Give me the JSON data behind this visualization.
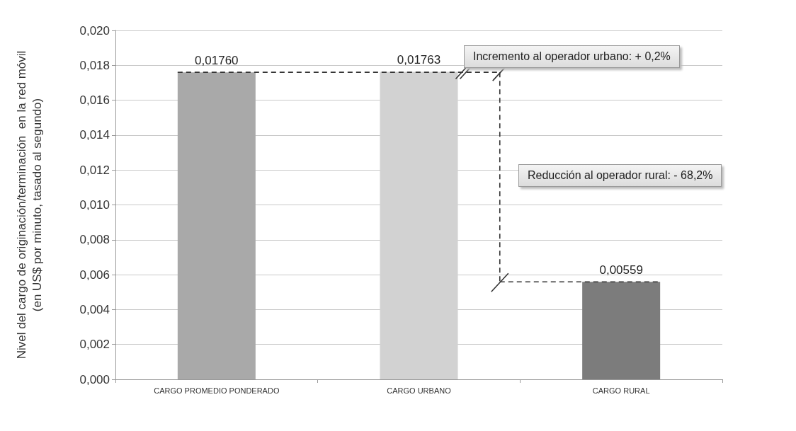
{
  "chart_data": {
    "type": "bar",
    "ylabel": "Nivel del cargo de originación/terminación  en la red móvil\n(en US$ por minuto, tasado al segundo)",
    "categories": [
      "CARGO PROMEDIO PONDERADO",
      "CARGO URBANO",
      "CARGO RURAL"
    ],
    "values": [
      0.0176,
      0.01763,
      0.00559
    ],
    "colors": [
      "#a9a9a9",
      "#d2d2d2",
      "#7c7c7c"
    ],
    "value_labels": [
      "0,01760",
      "0,01763",
      "0,00559"
    ],
    "ylim": [
      0,
      0.02
    ],
    "yticks": [
      {
        "value": 0,
        "label": "0,000"
      },
      {
        "value": 0.002,
        "label": "0,002"
      },
      {
        "value": 0.004,
        "label": "0,004"
      },
      {
        "value": 0.006,
        "label": "0,006"
      },
      {
        "value": 0.008,
        "label": "0,008"
      },
      {
        "value": 0.01,
        "label": "0,010"
      },
      {
        "value": 0.012,
        "label": "0,012"
      },
      {
        "value": 0.014,
        "label": "0,014"
      },
      {
        "value": 0.016,
        "label": "0,016"
      },
      {
        "value": 0.018,
        "label": "0,018"
      },
      {
        "value": 0.02,
        "label": "0,020"
      }
    ],
    "grid": "y",
    "annotations": [
      "Incremento al operador urbano: + 0,2%",
      "Reducción al operador rural: - 68,2%"
    ]
  }
}
